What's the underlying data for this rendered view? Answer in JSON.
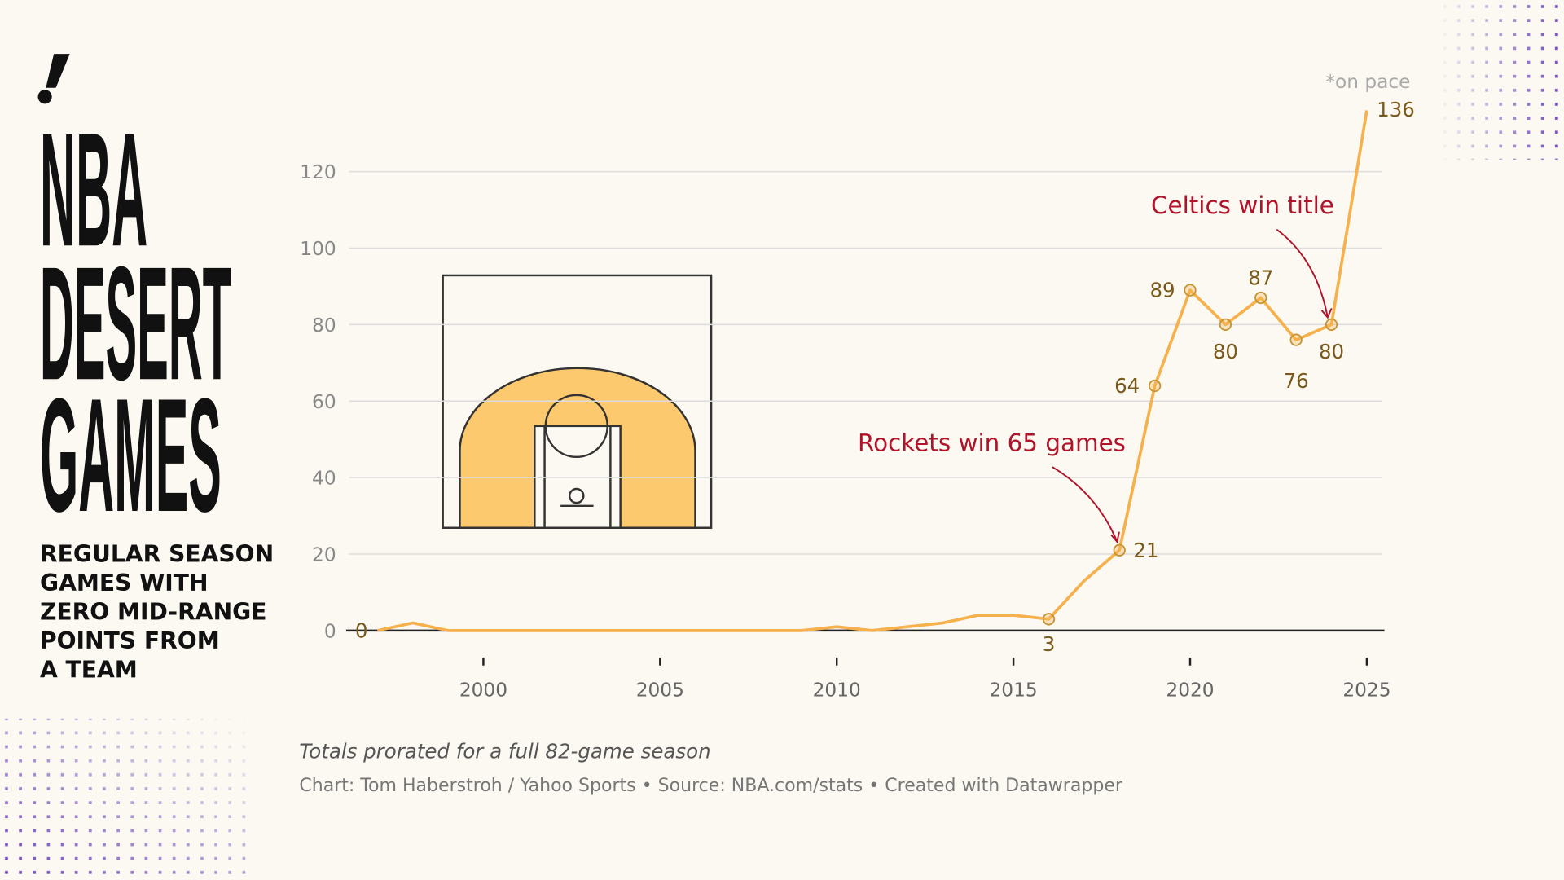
{
  "chart_data": {
    "type": "line",
    "title_lines": [
      "NBA",
      "DESERT",
      "GAMES"
    ],
    "subtitle_lines": [
      "REGULAR SEASON",
      "GAMES WITH",
      "ZERO MID-RANGE",
      "POINTS FROM",
      "A TEAM"
    ],
    "x": [
      1997,
      1998,
      1999,
      2000,
      2001,
      2002,
      2003,
      2004,
      2005,
      2006,
      2007,
      2008,
      2009,
      2010,
      2011,
      2012,
      2013,
      2014,
      2015,
      2016,
      2017,
      2018,
      2019,
      2020,
      2021,
      2022,
      2023,
      2024,
      2025
    ],
    "series": [
      {
        "color": "#f6b04c",
        "values": [
          0,
          2,
          0,
          0,
          0,
          0,
          0,
          0,
          0,
          0,
          0,
          0,
          0,
          1,
          0,
          1,
          2,
          4,
          4,
          3,
          13,
          21,
          64,
          89,
          80,
          87,
          76,
          80,
          136
        ]
      }
    ],
    "xlim": [
      1996.2,
      2025.5
    ],
    "xticks": [
      2000,
      2005,
      2010,
      2015,
      2020,
      2025
    ],
    "ylim": [
      0,
      120
    ],
    "yticks": [
      0,
      20,
      40,
      60,
      80,
      100,
      120
    ],
    "grid": true,
    "annotations": [
      "*on pace",
      "Rockets win 65 games",
      "Celtics win title"
    ],
    "note": "Totals prorated for a full 82-game season",
    "source": "Chart: Tom Haberstroh / Yahoo Sports • Source: NBA.com/stats • Created with Datawrapper"
  }
}
